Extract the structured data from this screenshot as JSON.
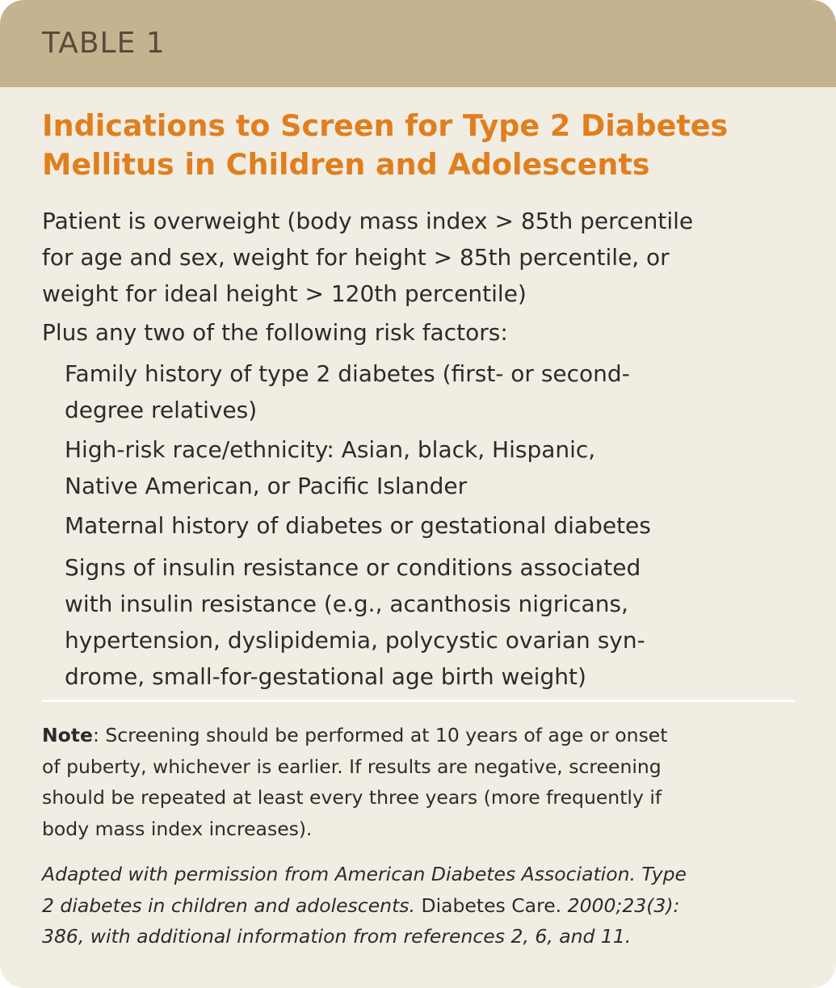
{
  "table_label": "TABLE 1",
  "title": {
    "line1": "Indications to Screen for Type 2 Diabetes",
    "line2": "Mellitus in Children and Adolescents"
  },
  "main_criterion": {
    "lines": [
      "Patient is overweight (body mass index > 85th percentile",
      "for age and sex, weight for height > 85th percentile, or",
      "weight for ideal height > 120th percentile)"
    ]
  },
  "plus_line": "Plus any two of the following risk factors:",
  "risk_factors": [
    {
      "lines": [
        "Family history of type 2 diabetes (first- or second-",
        "degree relatives)"
      ]
    },
    {
      "lines": [
        "High-risk race/ethnicity: Asian, black, Hispanic,",
        "Native American, or Pacific Islander"
      ]
    },
    {
      "lines": [
        "Maternal history of diabetes or gestational diabetes"
      ]
    },
    {
      "lines": [
        "Signs of insulin resistance or conditions associated",
        "with insulin resistance (e.g., acanthosis nigricans,",
        "hypertension, dyslipidemia, polycystic ovarian syn-",
        "drome, small-for-gestational age birth weight)"
      ]
    }
  ],
  "note": {
    "label": "Note",
    "line1_rest": ": Screening should be performed at 10 years of age or onset",
    "line2": "of puberty, whichever is earlier. If results are negative, screening",
    "line3": "should be repeated at least every three years (more frequently if",
    "line4": "body mass index increases)."
  },
  "source": {
    "line1": "Adapted with permission from American Diabetes Association. Type",
    "line2_italic": "2 diabetes in children and adolescents.",
    "line2_journal": " Diabetes Care.",
    "line2_tail": " 2000;23(3):",
    "line3": "386, with additional information from references 2, 6, and 11."
  },
  "colors": {
    "header_band": "#c5b390",
    "background": "#f2ede3",
    "title": "#e07f1e",
    "label_text": "#5a4a3a",
    "body_text": "#2b2b2b"
  }
}
